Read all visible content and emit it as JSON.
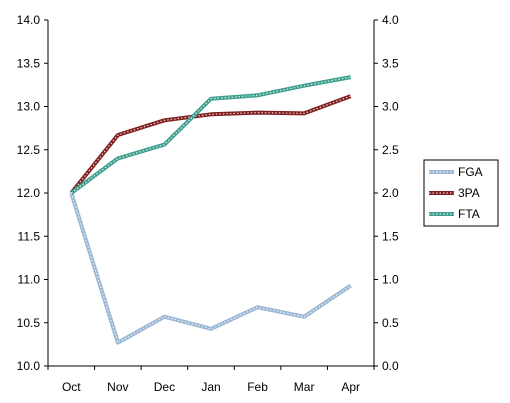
{
  "chart_data": {
    "type": "line",
    "categories": [
      "Oct",
      "Nov",
      "Dec",
      "Jan",
      "Feb",
      "Mar",
      "Apr"
    ],
    "left_axis": {
      "ylim": [
        10.0,
        14.0
      ],
      "ticks": [
        "10.0",
        "10.5",
        "11.0",
        "11.5",
        "12.0",
        "12.5",
        "13.0",
        "13.5",
        "14.0"
      ]
    },
    "right_axis": {
      "ylim": [
        0.0,
        4.0
      ],
      "ticks": [
        "0.0",
        "0.5",
        "1.0",
        "1.5",
        "2.0",
        "2.5",
        "3.0",
        "3.5",
        "4.0"
      ]
    },
    "series": [
      {
        "name": "FGA",
        "axis": "left",
        "color": "#9bb7d4",
        "values": [
          12.0,
          10.27,
          10.57,
          10.43,
          10.68,
          10.57,
          10.93
        ]
      },
      {
        "name": "3PA",
        "axis": "right",
        "color": "#7f1f1f",
        "values": [
          2.0,
          2.67,
          2.84,
          2.91,
          2.93,
          2.92,
          3.12
        ]
      },
      {
        "name": "FTA",
        "axis": "right",
        "color": "#3f9f8f",
        "values": [
          2.0,
          2.4,
          2.56,
          3.09,
          3.13,
          3.24,
          3.34
        ]
      }
    ],
    "legend": "right",
    "grid": false
  }
}
